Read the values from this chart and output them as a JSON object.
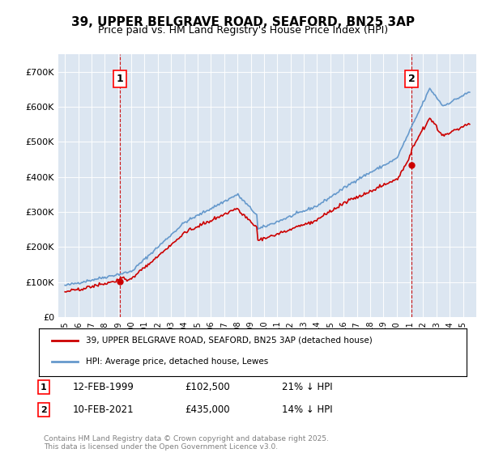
{
  "title_line1": "39, UPPER BELGRAVE ROAD, SEAFORD, BN25 3AP",
  "title_line2": "Price paid vs. HM Land Registry's House Price Index (HPI)",
  "ylabel": "",
  "background_color": "#dce6f1",
  "plot_bg_color": "#dce6f1",
  "ylim": [
    0,
    750000
  ],
  "yticks": [
    0,
    100000,
    200000,
    300000,
    400000,
    500000,
    600000,
    700000
  ],
  "ytick_labels": [
    "£0",
    "£100K",
    "£200K",
    "£300K",
    "£400K",
    "£500K",
    "£600K",
    "£700K"
  ],
  "legend_entries": [
    "39, UPPER BELGRAVE ROAD, SEAFORD, BN25 3AP (detached house)",
    "HPI: Average price, detached house, Lewes"
  ],
  "legend_colors": [
    "#cc0000",
    "#6699cc"
  ],
  "annotation1_label": "1",
  "annotation1_date": "12-FEB-1999",
  "annotation1_price": "£102,500",
  "annotation1_hpi": "21% ↓ HPI",
  "annotation2_label": "2",
  "annotation2_date": "10-FEB-2021",
  "annotation2_price": "£435,000",
  "annotation2_hpi": "14% ↓ HPI",
  "footer": "Contains HM Land Registry data © Crown copyright and database right 2025.\nThis data is licensed under the Open Government Licence v3.0.",
  "hpi_color": "#6699cc",
  "price_color": "#cc0000",
  "vline_color": "#cc0000",
  "marker_color": "#cc0000"
}
